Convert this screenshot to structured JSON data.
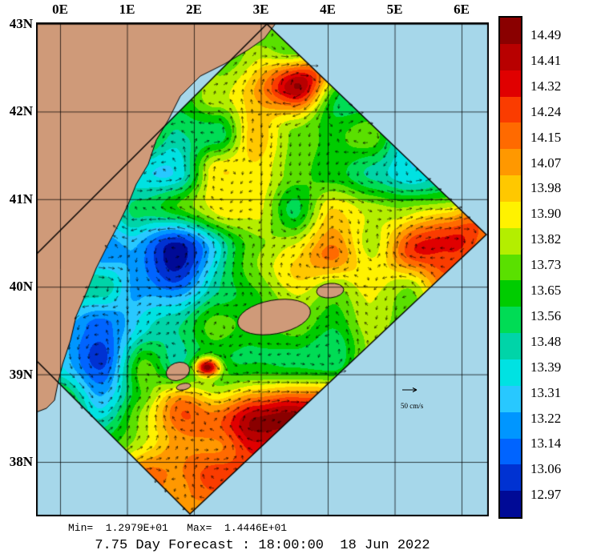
{
  "figure": {
    "title": "7.75 Day Forecast : 18:00:00  18 Jun 2022",
    "stats": "Min=  1.2979E+01   Max=  1.4446E+01",
    "min": "1.2979E+01",
    "max": "1.4446E+01"
  },
  "axes": {
    "x_ticks": [
      "0E",
      "1E",
      "2E",
      "3E",
      "4E",
      "5E",
      "6E"
    ],
    "y_ticks": [
      "43N",
      "42N",
      "41N",
      "40N",
      "39N",
      "38N"
    ]
  },
  "colorbar": {
    "values": [
      "14.49",
      "14.41",
      "14.32",
      "14.24",
      "14.15",
      "14.07",
      "13.98",
      "13.90",
      "13.82",
      "13.73",
      "13.65",
      "13.56",
      "13.48",
      "13.39",
      "13.31",
      "13.22",
      "13.14",
      "13.06",
      "12.97"
    ],
    "colors": [
      "#8a0000",
      "#b80000",
      "#e00000",
      "#fa3c00",
      "#ff6a00",
      "#ff9800",
      "#ffc800",
      "#fff200",
      "#b4ee00",
      "#5ae000",
      "#00cc00",
      "#00dc55",
      "#00d4a8",
      "#00e2e2",
      "#28c8ff",
      "#0096ff",
      "#0064ff",
      "#0032d2",
      "#000a96"
    ]
  },
  "vector_scale": {
    "label": "50 cm/s"
  },
  "map_colors": {
    "sea": "#a6d7ea",
    "land": "#cf9a79",
    "grid": "#000000"
  },
  "chart_data": {
    "type": "heatmap",
    "title": "7.75 Day Forecast : 18:00:00  18 Jun 2022",
    "field": "forecast scalar field (rotated model domain) with surface current vectors",
    "x_ticks": [
      "0E",
      "1E",
      "2E",
      "3E",
      "4E",
      "5E",
      "6E"
    ],
    "y_ticks": [
      "43N",
      "42N",
      "41N",
      "40N",
      "39N",
      "38N"
    ],
    "colorbar_levels": [
      14.49,
      14.41,
      14.32,
      14.24,
      14.15,
      14.07,
      13.98,
      13.9,
      13.82,
      13.73,
      13.65,
      13.56,
      13.48,
      13.39,
      13.31,
      13.22,
      13.14,
      13.06,
      12.97
    ],
    "min": 12.979,
    "max": 14.446,
    "vector_scale_cm_per_s": 50,
    "legend_position": "right"
  }
}
